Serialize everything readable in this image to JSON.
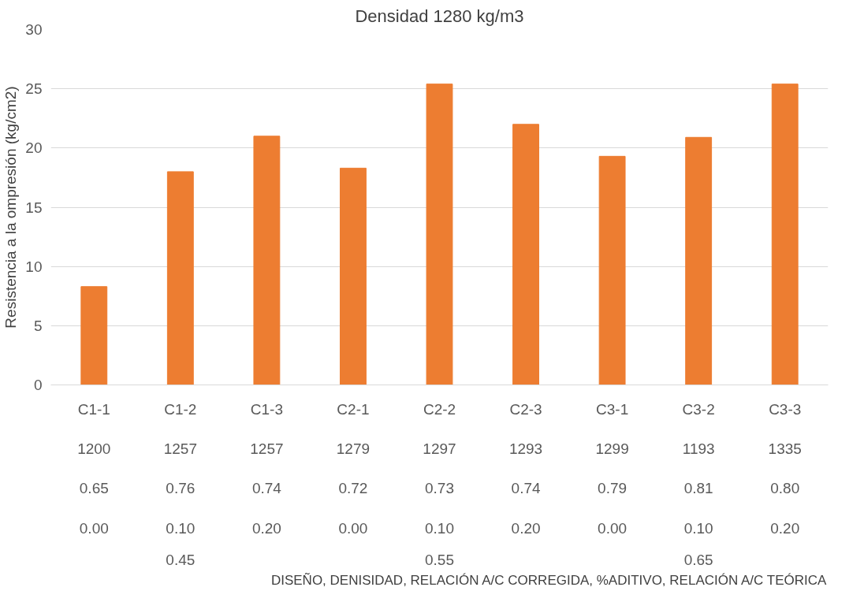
{
  "chart_data": {
    "type": "bar",
    "title": "Densidad 1280 kg/m3",
    "ylabel": "Resistencia a la ompresión (kg/cm2)",
    "categories": [
      "C1-1\n1200\n0.65\n0.00",
      "C1-2\n1257\n0.76\n0.10",
      "C1-3\n1257\n0.74\n0.20",
      "C2-1\n1279\n0.72\n0.00",
      "C2-2\n1297\n0.73\n0.10",
      "C2-3\n1293\n0.74\n0.20",
      "C3-1\n1299\n0.79\n0.00",
      "C3-2\n1193\n0.81\n0.10",
      "C3-3\n1335\n0.80\n0.20"
    ],
    "annotations": [
      "0.45",
      "0.55",
      "0.65",
      "DISEÑO, DENISIDAD, RELACIÓN A/C CORREGIDA, %ADITIVO, RELACIÓN A/C TEÓRICA"
    ],
    "values": [
      8.3,
      18.0,
      21.0,
      18.3,
      25.4,
      22.0,
      19.3,
      20.9,
      25.4
    ],
    "color": "#ed7d31",
    "ylim": [
      0,
      30
    ],
    "yticks": [
      0,
      5,
      10,
      15,
      20,
      25,
      30
    ],
    "grid": "y"
  }
}
